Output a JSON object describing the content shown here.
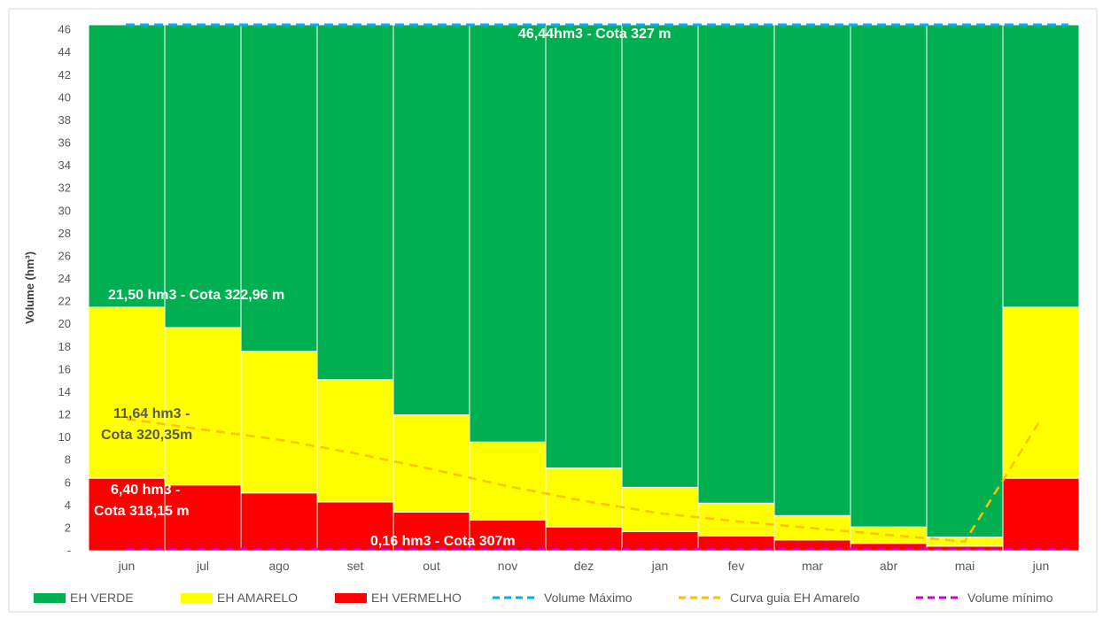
{
  "chart_data": {
    "type": "bar",
    "stacked": true,
    "ylabel": "Volume (hm³)",
    "ylim": [
      0,
      46.44
    ],
    "yticks": [
      "-",
      "2",
      "4",
      "6",
      "8",
      "10",
      "12",
      "14",
      "16",
      "18",
      "20",
      "22",
      "24",
      "26",
      "28",
      "30",
      "32",
      "34",
      "36",
      "38",
      "40",
      "42",
      "44",
      "46"
    ],
    "categories": [
      "jun",
      "jul",
      "ago",
      "set",
      "out",
      "nov",
      "dez",
      "jan",
      "fev",
      "mar",
      "abr",
      "mai",
      "jun"
    ],
    "series": [
      {
        "name": "EH VERMELHO",
        "color": "#ff0000",
        "values": [
          6.4,
          5.8,
          5.1,
          4.3,
          3.4,
          2.7,
          2.1,
          1.7,
          1.3,
          0.95,
          0.65,
          0.4,
          6.4
        ]
      },
      {
        "name": "EH AMARELO",
        "color": "#ffff00",
        "values": [
          15.1,
          13.9,
          12.5,
          10.8,
          8.6,
          6.9,
          5.2,
          3.9,
          2.9,
          2.15,
          1.45,
          0.8,
          15.1
        ]
      },
      {
        "name": "EH VERDE",
        "color": "#00b050",
        "values": [
          24.94,
          26.74,
          28.84,
          31.34,
          34.44,
          36.84,
          39.14,
          40.84,
          42.24,
          43.34,
          44.34,
          45.24,
          24.94
        ]
      }
    ],
    "lines": [
      {
        "name": "Volume Máximo",
        "color": "#00b0f0",
        "style": "dashed",
        "value": 46.44
      },
      {
        "name": "Curva guia EH Amarelo",
        "color": "#ffc000",
        "style": "dashed",
        "values": [
          11.64,
          10.7,
          9.8,
          8.6,
          7.2,
          5.7,
          4.4,
          3.3,
          2.6,
          2.0,
          1.4,
          0.8,
          11.64
        ]
      },
      {
        "name": "Volume mínimo",
        "color": "#cc00cc",
        "style": "dashed",
        "value": 0.16
      }
    ],
    "annotations": [
      {
        "text": "46,44hm3 - Cota  327 m",
        "color": "#ffffff"
      },
      {
        "text": "21,50 hm3 - Cota 322,96 m",
        "color": "#ffffff"
      },
      {
        "text": "11,64 hm3 -",
        "color": "#595959"
      },
      {
        "text": "Cota 320,35m",
        "color": "#595959"
      },
      {
        "text": "6,40 hm3 -",
        "color": "#ffffff"
      },
      {
        "text": "Cota 318,15 m",
        "color": "#ffffff"
      },
      {
        "text": "0,16 hm3 - Cota 307m",
        "color": "#ffffff"
      }
    ],
    "legend": [
      "EH VERDE",
      "EH AMARELO",
      "EH VERMELHO",
      "Volume Máximo",
      "Curva guia EH Amarelo",
      "Volume mínimo"
    ],
    "legend_position": "bottom",
    "grid": false
  }
}
